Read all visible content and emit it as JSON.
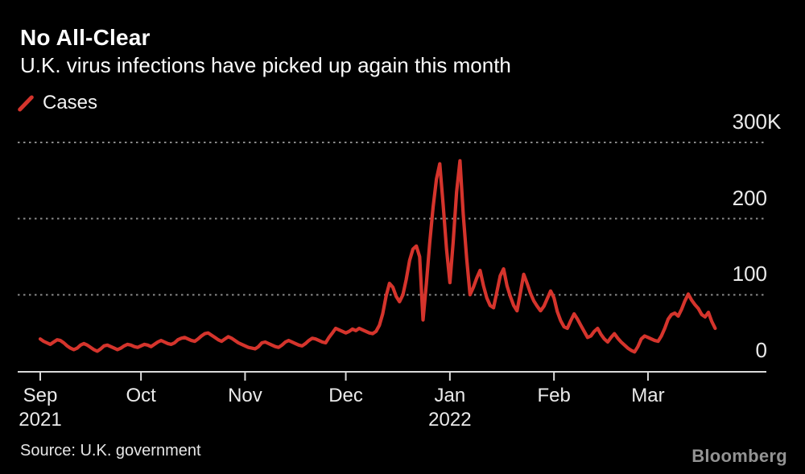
{
  "header": {
    "title": "No All-Clear",
    "subtitle": "U.K. virus infections have picked up again this month"
  },
  "legend": {
    "label": "Cases"
  },
  "footer": {
    "source": "Source: U.K. government",
    "brand": "Bloomberg"
  },
  "colors": {
    "background": "#000000",
    "series_red": "#d5342c",
    "gridline": "#8a8a8a",
    "axis": "#d9d9d9",
    "text": "#eaeaea"
  },
  "chart_data": {
    "type": "line",
    "title": "No All-Clear",
    "subtitle": "U.K. virus infections have picked up again this month",
    "unit": "thousands of daily cases (K)",
    "x_start": "2021-09-01",
    "x_end": "2022-03-21",
    "ylim": [
      0,
      300
    ],
    "grid": "horizontal-dotted",
    "legend_position": "top-left",
    "x_ticks": [
      {
        "label": "Sep",
        "sub": "2021",
        "day_index": 0
      },
      {
        "label": "Oct",
        "sub": "",
        "day_index": 30
      },
      {
        "label": "Nov",
        "sub": "",
        "day_index": 61
      },
      {
        "label": "Dec",
        "sub": "",
        "day_index": 91
      },
      {
        "label": "Jan",
        "sub": "2022",
        "day_index": 122
      },
      {
        "label": "Feb",
        "sub": "",
        "day_index": 153
      },
      {
        "label": "Mar",
        "sub": "",
        "day_index": 181
      }
    ],
    "y_ticks": [
      {
        "value": 300,
        "label": "300",
        "suffix": "K",
        "gridline": true
      },
      {
        "value": 200,
        "label": "200",
        "suffix": "",
        "gridline": true
      },
      {
        "value": 100,
        "label": "100",
        "suffix": "",
        "gridline": true
      },
      {
        "value": 0,
        "label": "0",
        "suffix": "",
        "gridline": false
      }
    ],
    "series": [
      {
        "name": "Cases",
        "color": "#d5342c",
        "values": [
          42,
          39,
          37,
          35,
          38,
          41,
          40,
          37,
          33,
          30,
          28,
          30,
          34,
          36,
          34,
          31,
          28,
          26,
          29,
          33,
          34,
          32,
          30,
          28,
          30,
          33,
          35,
          34,
          32,
          31,
          33,
          35,
          34,
          32,
          35,
          38,
          40,
          38,
          36,
          35,
          37,
          41,
          43,
          44,
          42,
          40,
          39,
          42,
          46,
          49,
          50,
          47,
          44,
          41,
          39,
          42,
          45,
          43,
          40,
          37,
          35,
          33,
          31,
          30,
          29,
          32,
          37,
          38,
          36,
          34,
          32,
          31,
          34,
          38,
          40,
          38,
          36,
          34,
          33,
          36,
          40,
          43,
          42,
          40,
          38,
          37,
          44,
          50,
          56,
          54,
          52,
          50,
          52,
          55,
          53,
          56,
          54,
          52,
          50,
          49,
          52,
          60,
          75,
          98,
          115,
          110,
          98,
          91,
          100,
          120,
          145,
          160,
          164,
          150,
          67,
          115,
          168,
          215,
          252,
          272,
          218,
          160,
          116,
          170,
          235,
          276,
          205,
          148,
          100,
          110,
          122,
          132,
          112,
          96,
          86,
          83,
          104,
          125,
          134,
          112,
          98,
          86,
          79,
          103,
          127,
          115,
          102,
          92,
          85,
          79,
          85,
          95,
          105,
          96,
          78,
          66,
          58,
          56,
          66,
          75,
          68,
          60,
          52,
          44,
          46,
          52,
          56,
          48,
          42,
          38,
          44,
          49,
          43,
          38,
          34,
          30,
          27,
          25,
          32,
          42,
          46,
          44,
          42,
          40,
          39,
          46,
          56,
          68,
          74,
          76,
          72,
          81,
          92,
          101,
          93,
          87,
          82,
          74,
          71,
          77,
          65,
          56
        ]
      }
    ]
  }
}
